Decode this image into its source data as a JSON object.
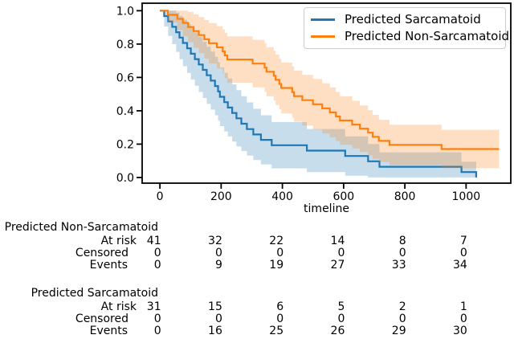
{
  "chart_data": {
    "type": "line",
    "subtype": "kaplan-meier-step-with-confidence-bands",
    "title": "",
    "xlabel": "timeline",
    "ylabel": "",
    "grid": false,
    "legend_position": "upper right",
    "x_ticks": [
      0,
      200,
      400,
      600,
      800,
      1000
    ],
    "y_ticks": [
      0.0,
      0.2,
      0.4,
      0.6,
      0.8,
      1.0
    ],
    "xlim": [
      -58,
      1146
    ],
    "ylim": [
      -0.034,
      1.045
    ],
    "ci_z": 1.96,
    "band_opacity": 0.25,
    "series": [
      {
        "name": "Predicted Sarcamatoid",
        "color": "#1f77b4",
        "n_subjects": 31,
        "start": {
          "t": 0,
          "s": 1.0
        },
        "times": [
          14,
          27,
          40,
          53,
          64,
          75,
          89,
          101,
          114,
          127,
          140,
          153,
          166,
          180,
          190,
          196,
          210,
          222,
          236,
          250,
          266,
          284,
          305,
          330,
          365,
          480,
          605,
          680,
          717,
          985,
          1033
        ],
        "survival": [
          0.9677,
          0.9355,
          0.9032,
          0.871,
          0.8387,
          0.8065,
          0.7742,
          0.7419,
          0.7097,
          0.6774,
          0.6452,
          0.6129,
          0.5806,
          0.5484,
          0.5161,
          0.4839,
          0.4516,
          0.4194,
          0.3871,
          0.3548,
          0.3226,
          0.2903,
          0.2581,
          0.2258,
          0.1935,
          0.1613,
          0.129,
          0.0968,
          0.0645,
          0.0323,
          0.0
        ],
        "line_end": 1033
      },
      {
        "name": "Predicted Non-Sarcamatoid",
        "color": "#ff7f0e",
        "n_subjects": 41,
        "start": {
          "t": 0,
          "s": 1.0
        },
        "times": [
          26,
          57,
          75,
          92,
          110,
          127,
          145,
          160,
          186,
          205,
          212,
          220,
          303,
          342,
          348,
          372,
          378,
          390,
          396,
          432,
          438,
          465,
          500,
          530,
          555,
          575,
          588,
          628,
          653,
          680,
          695,
          715,
          750,
          920
        ],
        "survival": [
          0.9756,
          0.9512,
          0.9268,
          0.9024,
          0.878,
          0.8537,
          0.8293,
          0.8049,
          0.7805,
          0.7561,
          0.7317,
          0.7073,
          0.6829,
          0.6585,
          0.6341,
          0.6098,
          0.5854,
          0.561,
          0.5366,
          0.5122,
          0.4878,
          0.4634,
          0.439,
          0.4146,
          0.3902,
          0.3659,
          0.3415,
          0.3171,
          0.2927,
          0.2683,
          0.2439,
          0.2195,
          0.1951,
          0.1707
        ],
        "line_end": 1108
      }
    ]
  },
  "risk_table": {
    "timeline_ticks": [
      0,
      200,
      400,
      600,
      800,
      1000
    ],
    "groups": [
      {
        "name": "Predicted Non-Sarcamatoid",
        "rows": [
          {
            "label": "At risk",
            "values": [
              41,
              32,
              22,
              14,
              8,
              7
            ]
          },
          {
            "label": "Censored",
            "values": [
              0,
              0,
              0,
              0,
              0,
              0
            ]
          },
          {
            "label": "Events",
            "values": [
              0,
              9,
              19,
              27,
              33,
              34
            ]
          }
        ]
      },
      {
        "name": "Predicted Sarcamatoid",
        "rows": [
          {
            "label": "At risk",
            "values": [
              31,
              15,
              6,
              5,
              2,
              1
            ]
          },
          {
            "label": "Censored",
            "values": [
              0,
              0,
              0,
              0,
              0,
              0
            ]
          },
          {
            "label": "Events",
            "values": [
              0,
              16,
              25,
              26,
              29,
              30
            ]
          }
        ]
      }
    ]
  }
}
